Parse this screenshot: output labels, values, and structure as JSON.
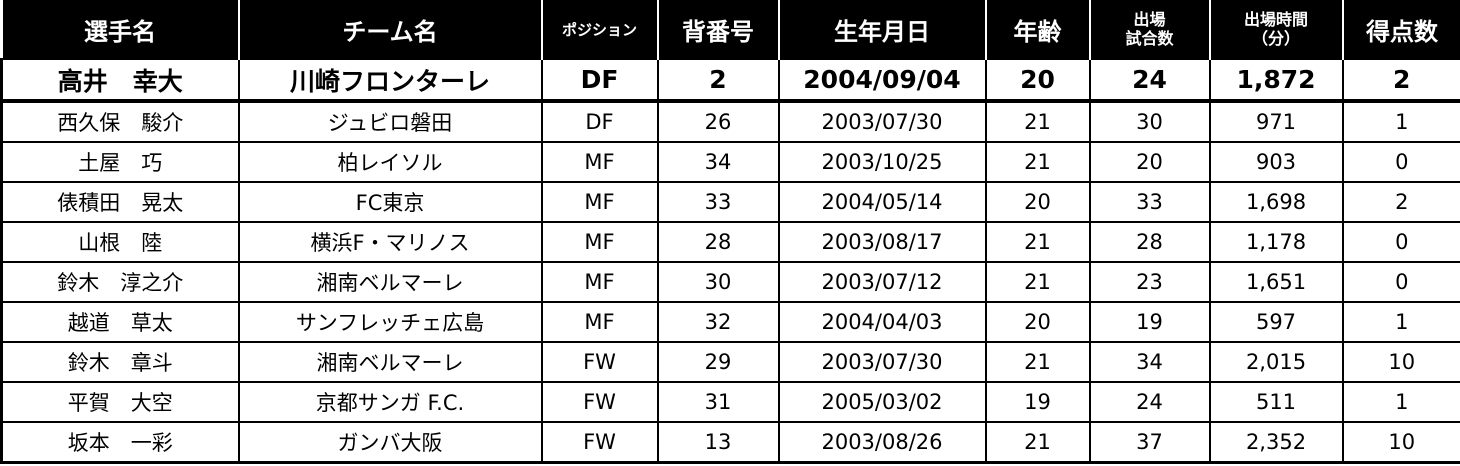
{
  "headers": [
    "選手名",
    "チーム名",
    "ポジション",
    "背番号",
    "生年月日",
    "年齢",
    "出場\n試合数",
    "出場時間\n（分）",
    "得点数"
  ],
  "rows": [
    [
      "高井　幸大",
      "川崎フロンターレ",
      "DF",
      "2",
      "2004/09/04",
      "20",
      "24",
      "1,872",
      "2"
    ],
    [
      "西久保　駿介",
      "ジュビロ磐田",
      "DF",
      "26",
      "2003/07/30",
      "21",
      "30",
      "971",
      "1"
    ],
    [
      "土屋　巧",
      "柏レイソル",
      "MF",
      "34",
      "2003/10/25",
      "21",
      "20",
      "903",
      "0"
    ],
    [
      "俵積田　晃太",
      "FC東京",
      "MF",
      "33",
      "2004/05/14",
      "20",
      "33",
      "1,698",
      "2"
    ],
    [
      "山根　陸",
      "横浜F・マリノス",
      "MF",
      "28",
      "2003/08/17",
      "21",
      "28",
      "1,178",
      "0"
    ],
    [
      "鈴木　淳之介",
      "湘南ベルマーレ",
      "MF",
      "30",
      "2003/07/12",
      "21",
      "23",
      "1,651",
      "0"
    ],
    [
      "越道　草太",
      "サンフレッチェ広島",
      "MF",
      "32",
      "2004/04/03",
      "20",
      "19",
      "597",
      "1"
    ],
    [
      "鈴木　章斗",
      "湘南ベルマーレ",
      "FW",
      "29",
      "2003/07/30",
      "21",
      "34",
      "2,015",
      "10"
    ],
    [
      "平賀　大空",
      "京都サンガ F.C.",
      "FW",
      "31",
      "2005/03/02",
      "19",
      "24",
      "511",
      "1"
    ],
    [
      "坂本　一彩",
      "ガンバ大阪",
      "FW",
      "13",
      "2003/08/26",
      "21",
      "37",
      "2,352",
      "10"
    ]
  ],
  "highlight_row": 0,
  "colors": {
    "header_bg": "#000000",
    "header_text": "#ffffff",
    "body_text": "#000000"
  }
}
